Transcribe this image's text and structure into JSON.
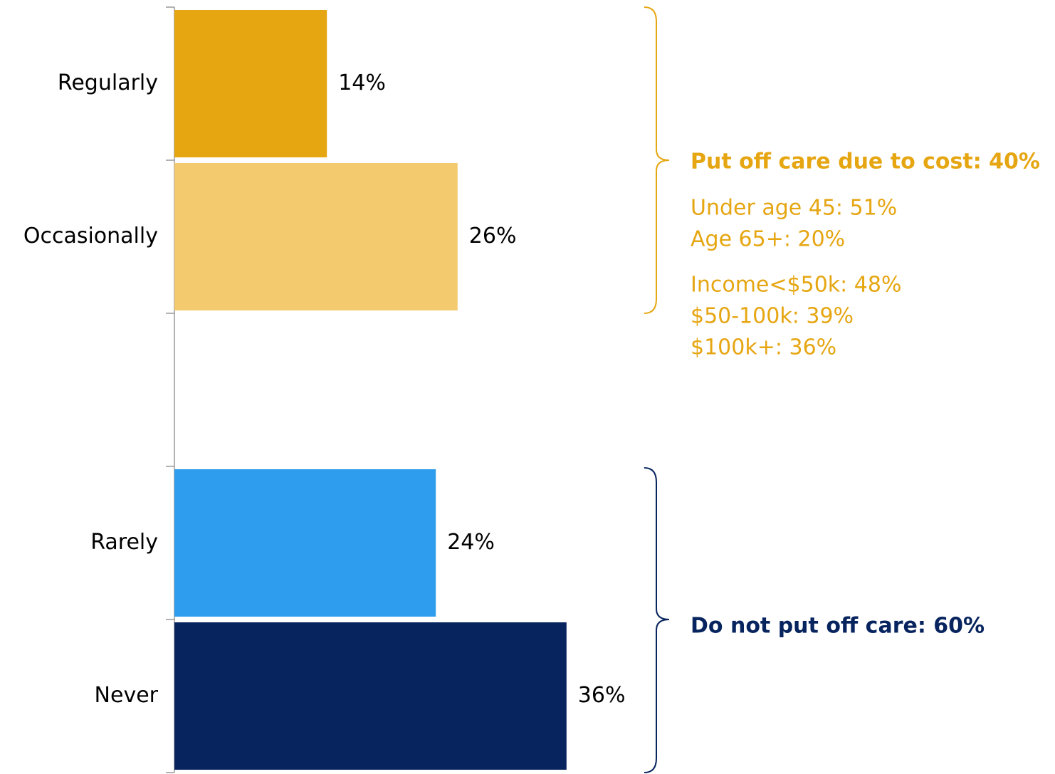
{
  "chart_data": {
    "type": "hbar",
    "categories": [
      "Regularly",
      "Occasionally",
      null,
      "Rarely",
      "Never"
    ],
    "values": [
      14,
      26,
      null,
      24,
      36
    ],
    "value_labels": [
      "14%",
      "26%",
      null,
      "24%",
      "36%"
    ],
    "colors": [
      "#e6a612",
      "#f3ca6e",
      null,
      "#2e9ded",
      "#07245e"
    ],
    "xlim": [
      0,
      40
    ],
    "annotations": [
      {
        "title": "Put off care due to cost: 40%",
        "color": "#e6a612",
        "lines": [
          "Under age 45: 51%",
          "Age 65+: 20%",
          "Income<$50k: 48%",
          "$50-100k: 39%",
          "$100k+: 36%"
        ]
      },
      {
        "title": "Do not put off care: 60%",
        "color": "#07245e",
        "lines": []
      }
    ]
  }
}
